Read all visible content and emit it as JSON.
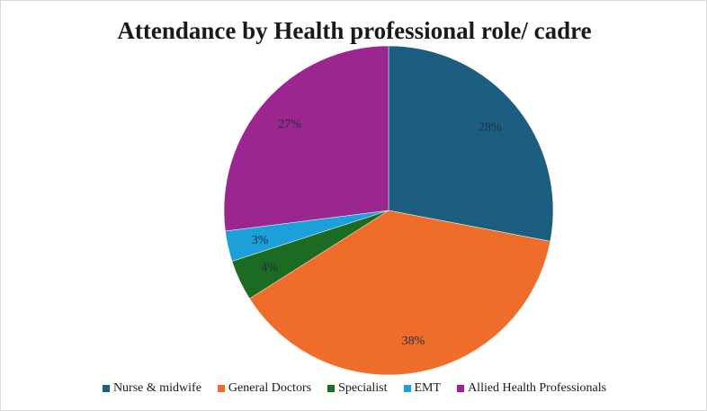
{
  "chart_data": {
    "type": "pie",
    "title": "Attendance by Health professional role/ cadre",
    "categories": [
      "Nurse & midwife",
      "General Doctors",
      "Specialist",
      "EMT",
      "Allied Health Professionals"
    ],
    "values": [
      28,
      38,
      4,
      3,
      27
    ],
    "labels": [
      "28%",
      "38%",
      "4%",
      "3%",
      "27%"
    ],
    "colors": [
      "#1c5e80",
      "#ee6d2b",
      "#1b6b22",
      "#1ba0d9",
      "#9c2690"
    ],
    "legend_position": "bottom"
  }
}
